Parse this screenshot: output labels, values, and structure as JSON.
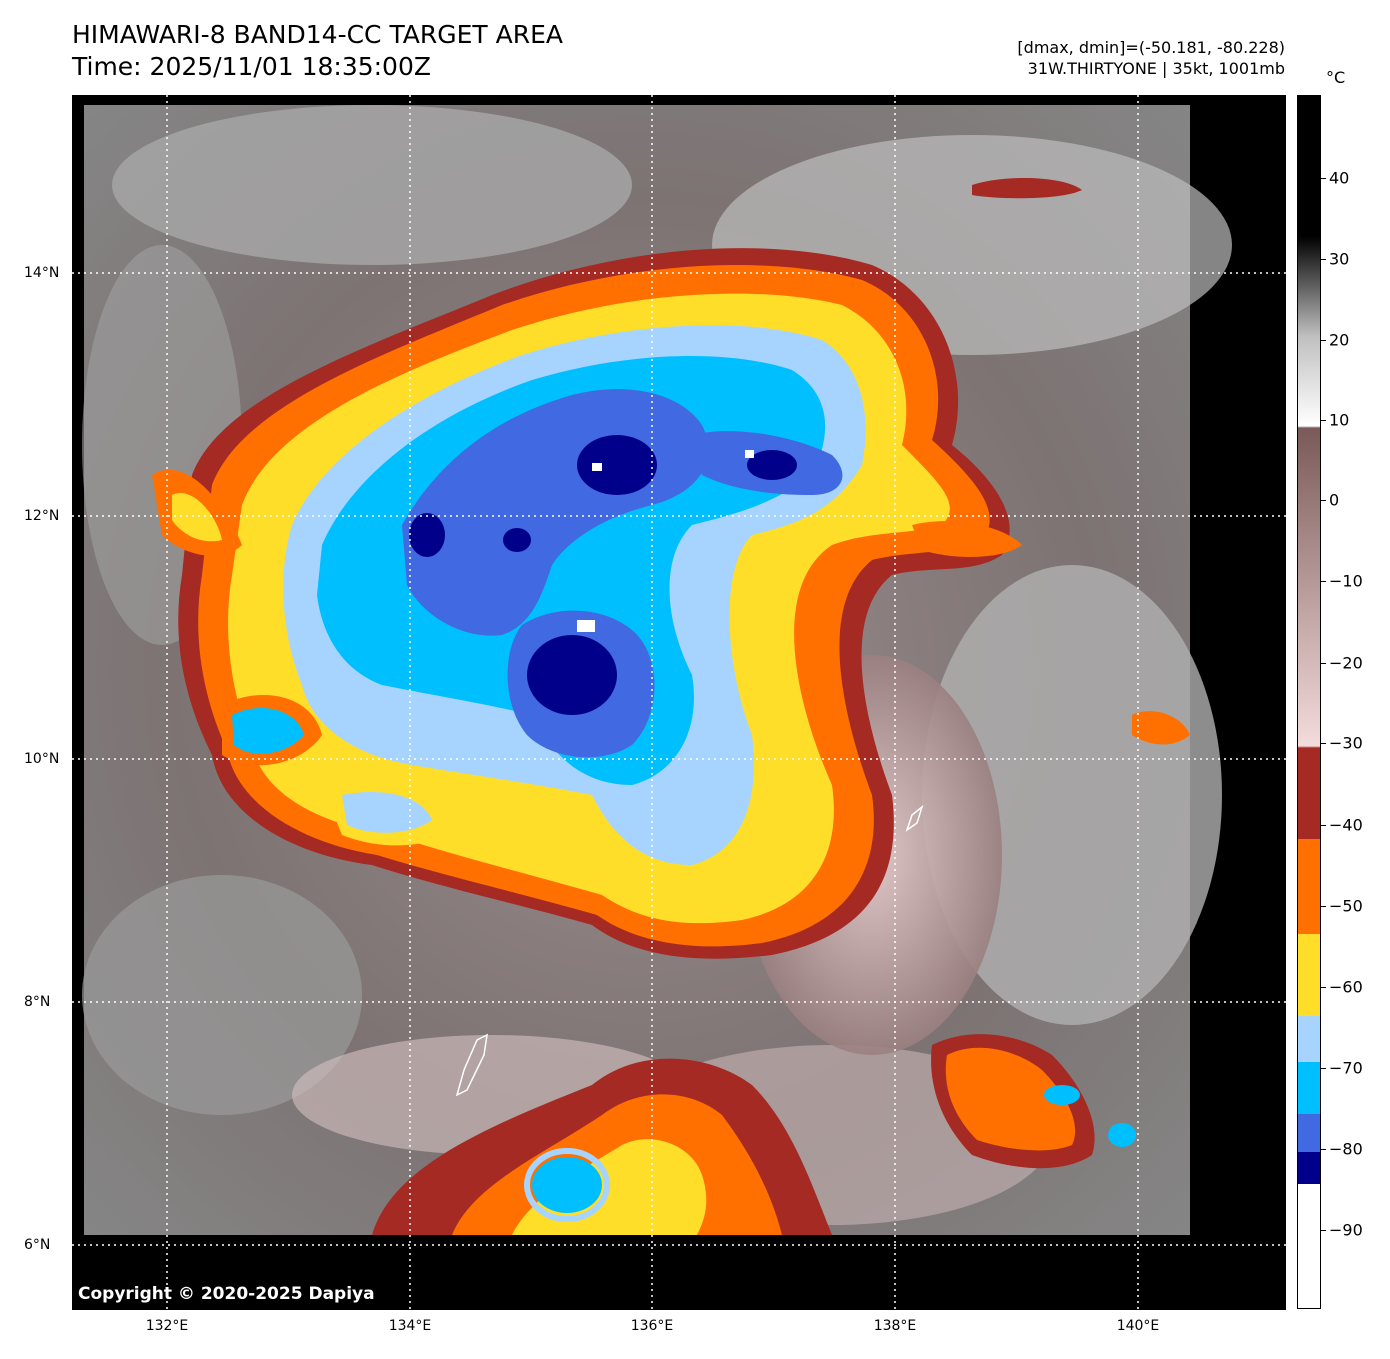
{
  "header": {
    "title_line1": "HIMAWARI-8 BAND14-CC TARGET AREA",
    "title_line2": "Time: 2025/11/01 18:35:00Z",
    "dmax_dmin": "[dmax, dmin]=(-50.181, -80.228)",
    "storm_info": "31W.THIRTYONE | 35kt, 1001mb"
  },
  "map": {
    "copyright": "Copyright © 2020-2025 Dapiya",
    "lon_labels": [
      "132°E",
      "134°E",
      "136°E",
      "138°E",
      "140°E"
    ],
    "lat_labels": [
      "14°N",
      "12°N",
      "10°N",
      "8°N",
      "6°N"
    ]
  },
  "colorbar": {
    "unit": "°C",
    "tick_labels": [
      "40",
      "30",
      "20",
      "10",
      "0",
      "−10",
      "−20",
      "−30",
      "−40",
      "−50",
      "−60",
      "−70",
      "−80",
      "−90"
    ],
    "colors": {
      "warm_top": "#000000",
      "warm_mid": "#bfbfbf",
      "warm_low": "#ffffff",
      "brown_high": "#7a5a58",
      "pink_low": "#f3dcdc",
      "band_m30": "#a52a24",
      "band_m40": "#ff7000",
      "band_m50": "#ffde2a",
      "band_m60": "#a6d4ff",
      "band_m70": "#00bfff",
      "band_m75": "#4169e1",
      "band_m80": "#00008b",
      "band_m90": "#ffffff"
    }
  }
}
